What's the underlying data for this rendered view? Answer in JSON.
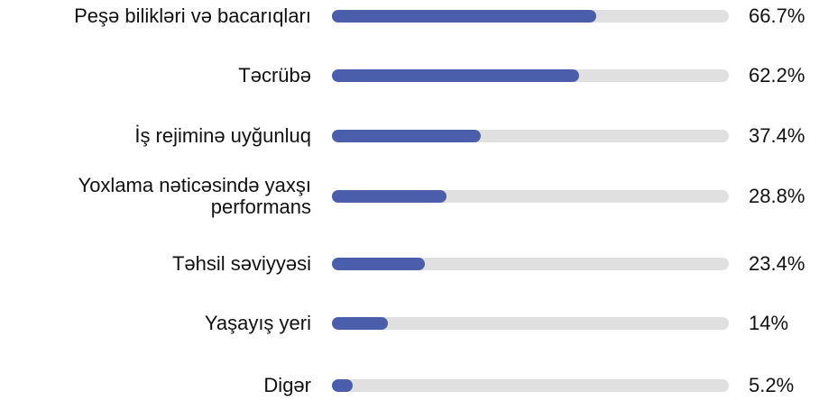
{
  "chart_data": {
    "type": "bar",
    "orientation": "horizontal",
    "categories": [
      "Peşə bilikləri və bacarıqları",
      "Təcrübə",
      "İş rejiminə uyğunluq",
      "Yoxlama nəticəsində yaxşı performans",
      "Təhsil səviyyəsi",
      "Yaşayış yeri",
      "Digər"
    ],
    "values": [
      66.7,
      62.2,
      37.4,
      28.8,
      23.4,
      14,
      5.2
    ],
    "value_labels": [
      "66.7%",
      "62.2%",
      "37.4%",
      "28.8%",
      "23.4%",
      "14%",
      "5.2%"
    ],
    "color": "#4a5eab",
    "xlim": [
      0,
      100
    ]
  }
}
